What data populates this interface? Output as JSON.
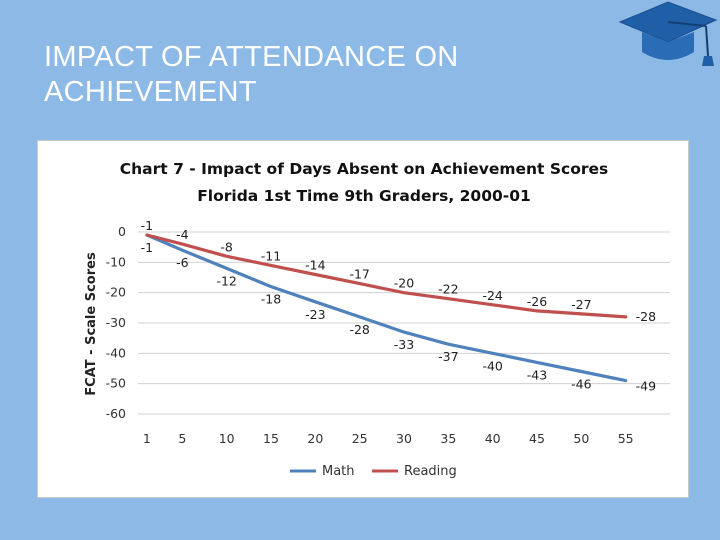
{
  "slide": {
    "title_line1": "IMPACT OF ATTENDANCE ON",
    "title_line2": "ACHIEVEMENT"
  },
  "icons": {
    "decoration": "graduation-cap-icon"
  },
  "colors": {
    "background": "#8db9e6",
    "math": "#4f81bd",
    "reading": "#c0504d",
    "grid": "#d0d0d0"
  },
  "chart_data": {
    "type": "line",
    "title": "Chart 7 - Impact of Days Absent on Achievement Scores",
    "subtitle": "Florida 1st Time 9th Graders, 2000-01",
    "ylabel": "FCAT - Scale Scores",
    "xlabel": "",
    "ylim": [
      -60,
      0
    ],
    "yticks": [
      0,
      -10,
      -20,
      -30,
      -40,
      -50,
      -60
    ],
    "grid": "horizontal",
    "legend_position": "bottom",
    "x": [
      1,
      5,
      10,
      15,
      20,
      25,
      30,
      35,
      40,
      45,
      50,
      55
    ],
    "x_tick_labels": [
      "1",
      "5",
      "10",
      "15",
      "20",
      "25",
      "30",
      "35",
      "40",
      "45",
      "50",
      "55"
    ],
    "series": [
      {
        "name": "Math",
        "color": "#4f81bd",
        "values": [
          -1,
          -6,
          -12,
          -18,
          -23,
          -28,
          -33,
          -37,
          -40,
          -43,
          -46,
          -49
        ],
        "labels": [
          "-1",
          "-6",
          "-12",
          "-18",
          "-23",
          "-28",
          "-33",
          "-37",
          "-40",
          "-43",
          "-46",
          "-49"
        ]
      },
      {
        "name": "Reading",
        "color": "#c0504d",
        "values": [
          -1,
          -4,
          -8,
          -11,
          -14,
          -17,
          -20,
          -22,
          -24,
          -26,
          -27,
          -28
        ],
        "labels": [
          "-1",
          "-4",
          "-8",
          "-11",
          "-14",
          "-17",
          "-20",
          "-22",
          "-24",
          "-26",
          "-27",
          "-28"
        ]
      }
    ]
  }
}
